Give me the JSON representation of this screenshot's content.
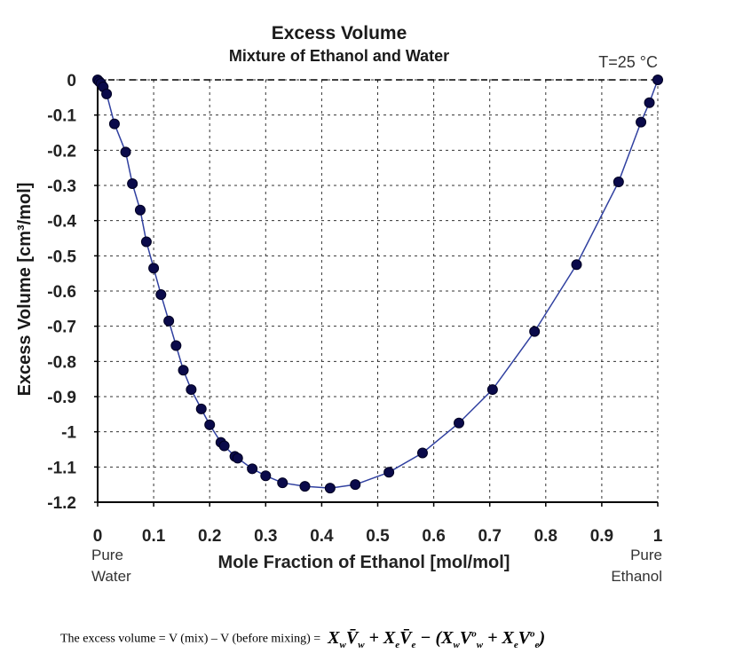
{
  "chart_data": {
    "type": "scatter",
    "title": "Excess Volume",
    "subtitle": "Mixture of Ethanol and Water",
    "annotation": "T=25 °C",
    "xlabel": "Mole Fraction of Ethanol [mol/mol]",
    "ylabel": "Excess Volume [cm³/mol]",
    "xlim": [
      0,
      1
    ],
    "ylim": [
      -1.2,
      0
    ],
    "x_ticks": [
      "0",
      "0.1",
      "0.2",
      "0.3",
      "0.4",
      "0.5",
      "0.6",
      "0.7",
      "0.8",
      "0.9",
      "1"
    ],
    "y_ticks": [
      "0",
      "-0.1",
      "-0.2",
      "-0.3",
      "-0.4",
      "-0.5",
      "-0.6",
      "-0.7",
      "-0.8",
      "-0.9",
      "-1",
      "-1.1",
      "-1.2"
    ],
    "x_end_labels": {
      "left": [
        "Pure",
        "Water"
      ],
      "right": [
        "Pure",
        "Ethanol"
      ]
    },
    "grid": true,
    "marker_color": "#0a0a4a",
    "line_color": "#3040a0",
    "series": [
      {
        "x": [
          0,
          0.003,
          0.006,
          0.01,
          0.016,
          0.03,
          0.05,
          0.062,
          0.076,
          0.087,
          0.1,
          0.113,
          0.127,
          0.14,
          0.153,
          0.167,
          0.185,
          0.2,
          0.22,
          0.226,
          0.245,
          0.25,
          0.276,
          0.3,
          0.33,
          0.37,
          0.415,
          0.46,
          0.52,
          0.58,
          0.645,
          0.705,
          0.78,
          0.855,
          0.93,
          0.97,
          0.985,
          1.0
        ],
        "y": [
          0,
          -0.005,
          -0.01,
          -0.02,
          -0.04,
          -0.125,
          -0.205,
          -0.295,
          -0.37,
          -0.46,
          -0.535,
          -0.61,
          -0.685,
          -0.755,
          -0.825,
          -0.88,
          -0.935,
          -0.98,
          -1.03,
          -1.04,
          -1.07,
          -1.075,
          -1.105,
          -1.125,
          -1.145,
          -1.155,
          -1.16,
          -1.15,
          -1.115,
          -1.06,
          -0.975,
          -0.88,
          -0.715,
          -0.525,
          -0.29,
          -0.12,
          -0.065,
          0
        ]
      }
    ]
  },
  "footer": {
    "text": "The excess volume = V (mix) – V (before mixing) ="
  }
}
